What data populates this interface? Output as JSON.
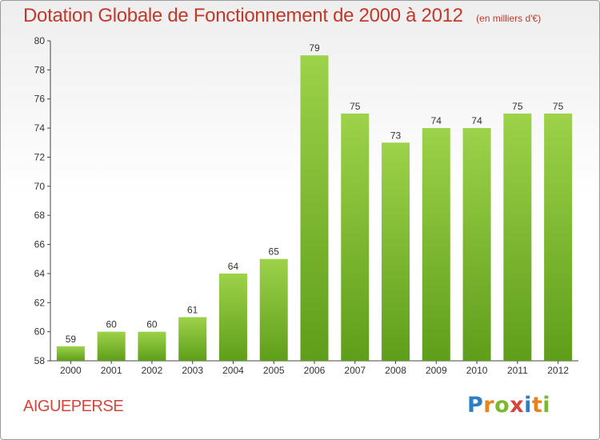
{
  "chart_data": {
    "type": "bar",
    "title": "Dotation Globale de Fonctionnement de 2000 à 2012",
    "subtitle": "(en milliers d'€)",
    "categories": [
      "2000",
      "2001",
      "2002",
      "2003",
      "2004",
      "2005",
      "2006",
      "2007",
      "2008",
      "2009",
      "2010",
      "2011",
      "2012"
    ],
    "values": [
      59,
      60,
      60,
      61,
      64,
      65,
      79,
      75,
      73,
      74,
      74,
      75,
      75
    ],
    "ylim": [
      58,
      80
    ],
    "yticks": [
      58,
      60,
      62,
      64,
      66,
      68,
      70,
      72,
      74,
      76,
      78,
      80
    ],
    "xlabel": "",
    "ylabel": "",
    "grid": false,
    "bar_color": "#7cb82f"
  },
  "commune": "AIGUEPERSE",
  "brand": {
    "letters": [
      {
        "char": "P",
        "color": "#2a7fc9"
      },
      {
        "char": "r",
        "color": "#e8821a"
      },
      {
        "char": "o",
        "color": "#7cb82f"
      },
      {
        "char": "x",
        "color": "#d6453c"
      },
      {
        "char": "i",
        "color": "#2a7fc9"
      },
      {
        "char": "t",
        "color": "#e8821a"
      },
      {
        "char": "i",
        "color": "#7cb82f"
      }
    ]
  }
}
